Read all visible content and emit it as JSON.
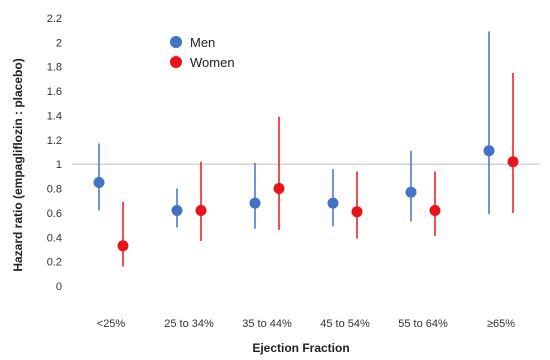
{
  "chart_data": {
    "type": "scatter",
    "title": "",
    "xlabel": "Ejection Fraction",
    "ylabel": "Hazard ratio (empagliflozin : placebo)",
    "ylim": [
      0,
      2.2
    ],
    "yticks": [
      "0",
      "0.2",
      "0.4",
      "0.6",
      "0.8",
      "1",
      "1.2",
      "1.4",
      "1.6",
      "1.8",
      "2",
      "2.2"
    ],
    "reference_line": 1,
    "grid": false,
    "legend_position": "top-left",
    "categories": [
      "<25%",
      "25 to 34%",
      "35 to 44%",
      "45 to 54%",
      "55 to 64%",
      "≥65%"
    ],
    "series": [
      {
        "name": "Men",
        "color": "#4472c4",
        "values": [
          0.85,
          0.62,
          0.68,
          0.68,
          0.77,
          1.11
        ],
        "lower": [
          0.62,
          0.48,
          0.47,
          0.49,
          0.53,
          0.59
        ],
        "upper": [
          1.17,
          0.8,
          1.01,
          0.96,
          1.11,
          2.09
        ]
      },
      {
        "name": "Women",
        "color": "#e8141c",
        "values": [
          0.33,
          0.62,
          0.8,
          0.61,
          0.62,
          1.02
        ],
        "lower": [
          0.16,
          0.37,
          0.46,
          0.39,
          0.41,
          0.6
        ],
        "upper": [
          0.69,
          1.02,
          1.39,
          0.94,
          0.94,
          1.75
        ]
      }
    ]
  }
}
